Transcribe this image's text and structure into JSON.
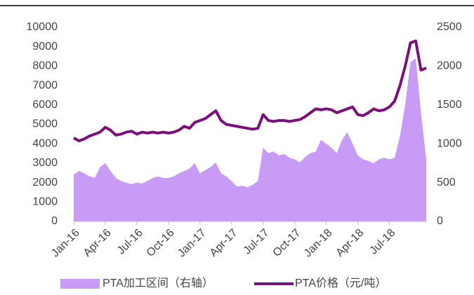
{
  "chart_data": {
    "type": "area-line",
    "categories": [
      "Jan-16",
      null,
      null,
      null,
      null,
      null,
      "Apr-16",
      null,
      null,
      null,
      null,
      null,
      "Jul-16",
      null,
      null,
      null,
      null,
      null,
      "Oct-16",
      null,
      null,
      null,
      null,
      null,
      "Jan-17",
      null,
      null,
      null,
      null,
      null,
      "Apr-17",
      null,
      null,
      null,
      null,
      null,
      "Jul-17",
      null,
      null,
      null,
      null,
      null,
      "Oct-17",
      null,
      null,
      null,
      null,
      null,
      "Jan-18",
      null,
      null,
      null,
      null,
      null,
      "Apr-18",
      null,
      null,
      null,
      null,
      null,
      "Jul-18",
      null,
      null,
      null,
      null,
      null,
      null,
      null
    ],
    "series": [
      {
        "name": "PTA加工区间（右轴）",
        "color": "#c89cf6",
        "axis": "y2",
        "kind": "area",
        "values": [
          600,
          650,
          620,
          580,
          560,
          700,
          750,
          650,
          560,
          520,
          500,
          480,
          500,
          490,
          520,
          560,
          580,
          560,
          560,
          580,
          620,
          650,
          680,
          750,
          620,
          660,
          700,
          760,
          620,
          580,
          520,
          450,
          460,
          440,
          470,
          520,
          950,
          880,
          900,
          850,
          870,
          820,
          800,
          760,
          830,
          880,
          900,
          1050,
          1000,
          950,
          880,
          1050,
          1150,
          1000,
          850,
          800,
          780,
          750,
          800,
          820,
          800,
          820,
          1100,
          1500,
          2050,
          2100,
          1400,
          800
        ]
      },
      {
        "name": "PTA价格（元/吨）",
        "color": "#7b0f7b",
        "axis": "y",
        "kind": "line",
        "values": [
          4300,
          4150,
          4250,
          4400,
          4500,
          4600,
          4850,
          4700,
          4450,
          4500,
          4600,
          4650,
          4500,
          4600,
          4550,
          4600,
          4550,
          4600,
          4550,
          4600,
          4700,
          4900,
          4800,
          5100,
          5200,
          5300,
          5500,
          5700,
          5200,
          5000,
          4950,
          4900,
          4850,
          4800,
          4750,
          4800,
          5500,
          5200,
          5150,
          5200,
          5200,
          5150,
          5200,
          5250,
          5400,
          5600,
          5800,
          5750,
          5800,
          5750,
          5600,
          5700,
          5800,
          5900,
          5500,
          5450,
          5600,
          5800,
          5700,
          5750,
          5900,
          6200,
          7000,
          8000,
          9200,
          9300,
          7800,
          7900
        ]
      }
    ],
    "ylim": [
      0,
      10000
    ],
    "yticks": [
      0,
      1000,
      2000,
      3000,
      4000,
      5000,
      6000,
      7000,
      8000,
      9000,
      10000
    ],
    "y2lim": [
      0,
      2500
    ],
    "y2ticks": [
      0,
      500,
      1000,
      1500,
      2000,
      2500
    ],
    "legend": "bottom"
  }
}
